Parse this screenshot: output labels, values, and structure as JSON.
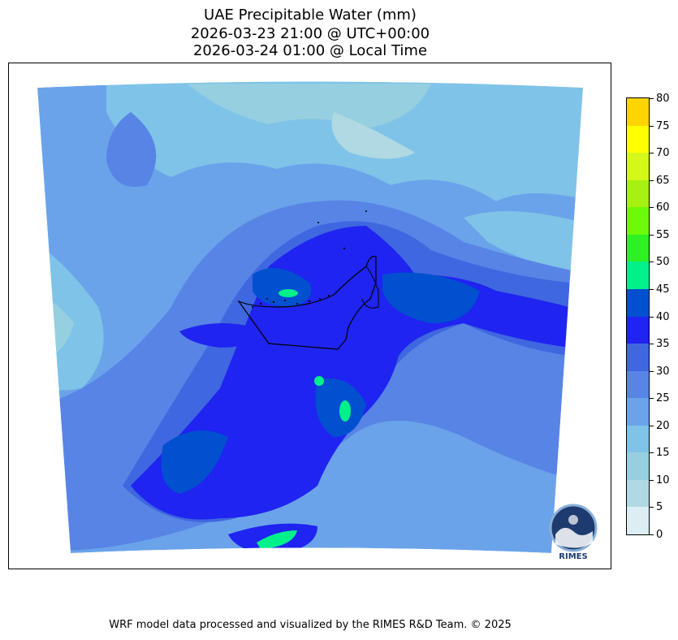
{
  "title": {
    "line1": "UAE Precipitable Water (mm)",
    "line2": "2026-03-23 21:00 @ UTC+00:00",
    "line3": "2026-03-24 01:00 @ Local Time"
  },
  "colorbar": {
    "levels": [
      "0",
      "5",
      "10",
      "15",
      "20",
      "25",
      "30",
      "35",
      "40",
      "45",
      "50",
      "55",
      "60",
      "65",
      "70",
      "75",
      "80"
    ],
    "colors": [
      "#dceef4",
      "#b0d9e3",
      "#95cfe0",
      "#7fc3e8",
      "#6aa3ea",
      "#5884e6",
      "#3f67e0",
      "#1f24f0",
      "#0050d0",
      "#00f08a",
      "#2ef024",
      "#6cfa08",
      "#a6f012",
      "#d4f81a",
      "#ffff00",
      "#ffd400"
    ]
  },
  "logo": {
    "text": "RIMES"
  },
  "footer": "WRF model data processed and visualized by the RIMES R&D Team. © 2025"
}
